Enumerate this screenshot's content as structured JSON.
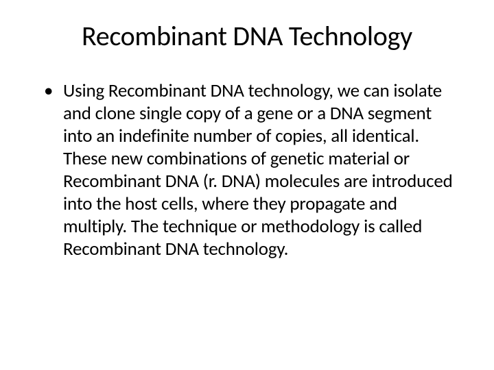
{
  "slide": {
    "title": "Recombinant DNA Technology",
    "bullets": [
      "Using Recombinant DNA technology, we can isolate and clone single copy of a gene or a DNA segment into an indefinite number of copies, all identical. These new combinations of genetic material or Recombinant DNA (r. DNA) molecules are introduced into the host cells, where they propagate and multiply. The technique or methodology is called Recombinant DNA technology."
    ]
  },
  "style": {
    "background_color": "#ffffff",
    "text_color": "#000000",
    "title_fontsize": 40,
    "body_fontsize": 27,
    "font_family": "Calibri"
  }
}
